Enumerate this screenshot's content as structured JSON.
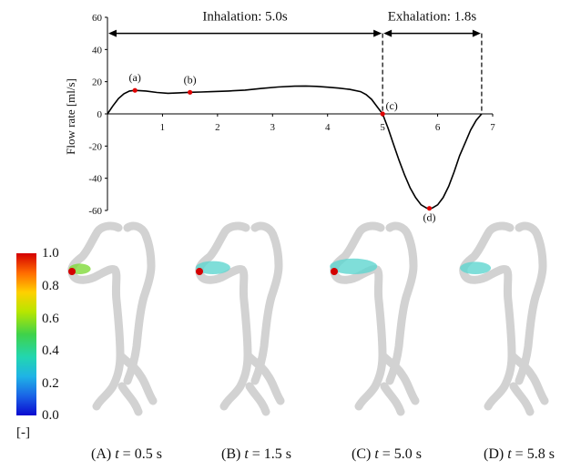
{
  "chart_data": {
    "type": "line",
    "ylabel": "Flow rate [ml/s]",
    "xlabel": "",
    "xlim": [
      0,
      7
    ],
    "ylim": [
      -60,
      60
    ],
    "xticks": [
      "1",
      "2",
      "3",
      "4",
      "5",
      "6",
      "7"
    ],
    "yticks": [
      "60",
      "40",
      "20",
      "0",
      "-20",
      "-40",
      "-60"
    ],
    "series": [
      {
        "x": [
          0,
          0.1,
          0.2,
          0.3,
          0.4,
          0.5,
          0.7,
          0.9,
          1.1,
          1.3,
          1.5,
          1.7,
          1.9,
          2.2,
          2.5,
          2.8,
          3.1,
          3.4,
          3.6,
          3.8,
          4.0,
          4.2,
          4.4,
          4.6,
          4.7,
          4.8,
          4.9,
          5.0,
          5.1,
          5.2,
          5.3,
          5.4,
          5.5,
          5.6,
          5.7,
          5.8,
          5.9,
          6.0,
          6.1,
          6.2,
          6.3,
          6.4,
          6.5,
          6.6,
          6.7,
          6.8
        ],
        "y": [
          0,
          5,
          9.5,
          12.5,
          14.2,
          14.6,
          14.2,
          13.3,
          12.8,
          13.1,
          13.4,
          13.6,
          13.8,
          14.2,
          14.8,
          15.8,
          16.7,
          17.2,
          17.3,
          17.1,
          16.6,
          16.0,
          15.2,
          13.8,
          12.0,
          9.0,
          4.5,
          0,
          -9,
          -19,
          -29,
          -38,
          -46,
          -52,
          -56.5,
          -58.5,
          -58.5,
          -56.5,
          -52,
          -45,
          -36,
          -26,
          -18,
          -10,
          -4,
          0
        ]
      }
    ],
    "points": [
      {
        "label": "(a)",
        "x": 0.5,
        "y": 14.6
      },
      {
        "label": "(b)",
        "x": 1.5,
        "y": 13.4
      },
      {
        "label": "(c)",
        "x": 5.0,
        "y": 0
      },
      {
        "label": "(d)",
        "x": 5.85,
        "y": -58.7
      }
    ],
    "phases": [
      {
        "label": "Inhalation: 5.0s",
        "x_start": 0,
        "x_end": 5.0
      },
      {
        "label": "Exhalation: 1.8s",
        "x_start": 5.0,
        "x_end": 6.8
      }
    ]
  },
  "colorbar": {
    "labels": [
      "1.0",
      "0.8",
      "0.6",
      "0.4",
      "0.2",
      "0.0"
    ],
    "unit": "[-]"
  },
  "panels": [
    {
      "prefix": "(A) ",
      "var": "t",
      "suffix": " = 0.5 s",
      "fill": 0.2
    },
    {
      "prefix": "(B) ",
      "var": "t",
      "suffix": " = 1.5 s",
      "fill": 0.55
    },
    {
      "prefix": "(C) ",
      "var": "t",
      "suffix": " = 5.0 s",
      "fill": 0.9
    },
    {
      "prefix": "(D) ",
      "var": "t",
      "suffix": " = 5.8 s",
      "fill": 0.45
    }
  ]
}
